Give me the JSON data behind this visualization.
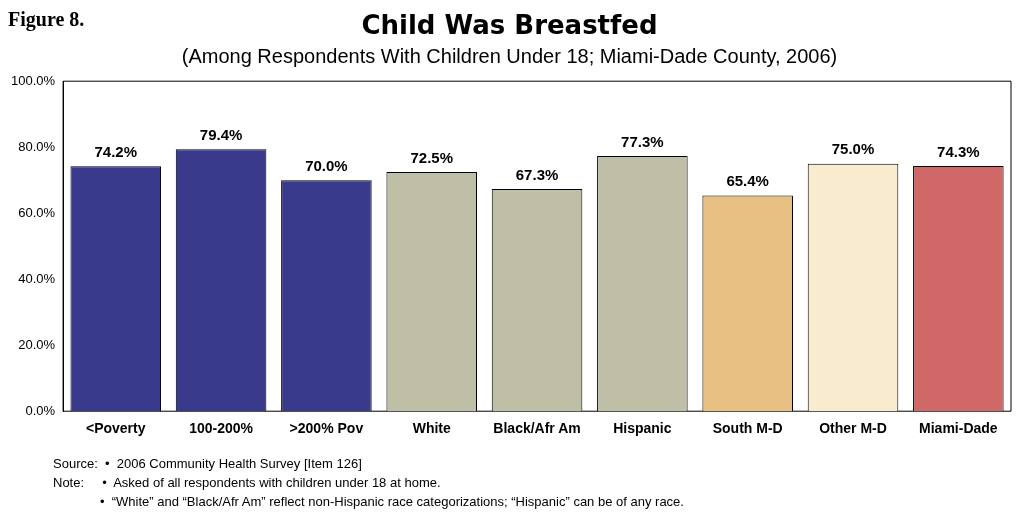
{
  "chart_data": {
    "type": "bar",
    "title": "Child Was Breastfed",
    "subtitle": "(Among Respondents With Children Under 18; Miami-Dade County, 2006)",
    "categories": [
      "<Poverty",
      "100-200%",
      ">200% Pov",
      "White",
      "Black/Afr Am",
      "Hispanic",
      "South M-D",
      "Other M-D",
      "Miami-Dade"
    ],
    "values": [
      74.2,
      79.4,
      70.0,
      72.5,
      67.3,
      77.3,
      65.4,
      75.0,
      74.3
    ],
    "value_labels": [
      "74.2%",
      "79.4%",
      "70.0%",
      "72.5%",
      "67.3%",
      "77.3%",
      "65.4%",
      "75.0%",
      "74.3%"
    ],
    "colors": [
      "#3a3a8c",
      "#3a3a8c",
      "#3a3a8c",
      "#bfbfa8",
      "#bfbfa8",
      "#bfbfa8",
      "#e8c084",
      "#f8ebcf",
      "#d06868"
    ],
    "ylim": [
      0,
      100
    ],
    "yticks": [
      {
        "value": 0,
        "label": "0.0%"
      },
      {
        "value": 20,
        "label": "20.0%"
      },
      {
        "value": 40,
        "label": "40.0%"
      },
      {
        "value": 60,
        "label": "60.0%"
      },
      {
        "value": 80,
        "label": "80.0%"
      },
      {
        "value": 100,
        "label": "100.0%"
      }
    ],
    "grid": false,
    "legend": false,
    "annotations": [
      "Figure 8.",
      "Source:  •  2006 Community Health Survey [Item 126]",
      "Note:     •  Asked of all respondents with children under 18 at home.",
      "             •  “White” and “Black/Afr Am” reflect non-Hispanic race categorizations; “Hispanic” can be of any race."
    ]
  }
}
